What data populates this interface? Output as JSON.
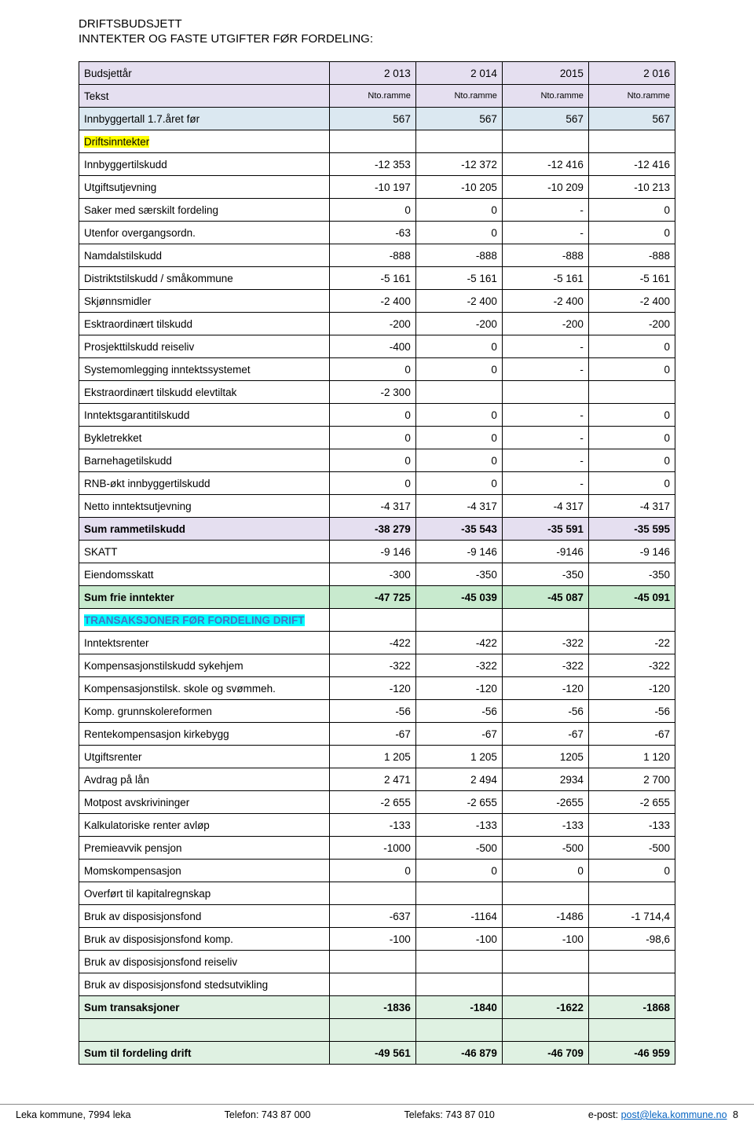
{
  "header": {
    "line1": "DRIFTSBUDSJETT",
    "line2": "INNTEKTER OG FASTE UTGIFTER FØR FORDELING:"
  },
  "head_row1": {
    "label": "Budsjettår",
    "c1": "2 013",
    "c2": "2 014",
    "c3": "2015",
    "c4": "2 016"
  },
  "head_row2": {
    "label": "Tekst",
    "c1": "Nto.ramme",
    "c2": "Nto.ramme",
    "c3": "Nto.ramme",
    "c4": "Nto.ramme"
  },
  "rows": [
    {
      "label": "Innbyggertall 1.7.året før",
      "c1": "567",
      "c2": "567",
      "c3": "567",
      "c4": "567",
      "style": "blue"
    },
    {
      "label": "Driftsinntekter",
      "c1": "",
      "c2": "",
      "c3": "",
      "c4": "",
      "highlight": "yellow"
    },
    {
      "label": "Innbyggertilskudd",
      "c1": "-12 353",
      "c2": "-12 372",
      "c3": "-12 416",
      "c4": "-12 416"
    },
    {
      "label": "Utgiftsutjevning",
      "c1": "-10 197",
      "c2": "-10 205",
      "c3": "-10 209",
      "c4": "-10 213"
    },
    {
      "label": "Saker med særskilt fordeling",
      "c1": "0",
      "c2": "0",
      "c3": "-",
      "c4": "0"
    },
    {
      "label": "Utenfor overgangsordn.",
      "c1": "-63",
      "c2": "0",
      "c3": "-",
      "c4": "0"
    },
    {
      "label": "Namdalstilskudd",
      "c1": "-888",
      "c2": "-888",
      "c3": "-888",
      "c4": "-888"
    },
    {
      "label": "Distriktstilskudd / småkommune",
      "c1": "-5 161",
      "c2": "-5 161",
      "c3": "-5 161",
      "c4": "-5 161"
    },
    {
      "label": "Skjønnsmidler",
      "c1": "-2 400",
      "c2": "-2 400",
      "c3": "-2 400",
      "c4": "-2 400"
    },
    {
      "label": "Esktraordinært tilskudd",
      "c1": "-200",
      "c2": "-200",
      "c3": "-200",
      "c4": "-200"
    },
    {
      "label": "Prosjekttilskudd reiseliv",
      "c1": "-400",
      "c2": "0",
      "c3": "-",
      "c4": "0"
    },
    {
      "label": "Systemomlegging inntektssystemet",
      "c1": "0",
      "c2": "0",
      "c3": "-",
      "c4": "0"
    },
    {
      "label": "Ekstraordinært tilskudd elevtiltak",
      "c1": "-2 300",
      "c2": "",
      "c3": "",
      "c4": ""
    },
    {
      "label": "Inntektsgarantitilskudd",
      "c1": "0",
      "c2": "0",
      "c3": "-",
      "c4": "0"
    },
    {
      "label": "Bykletrekket",
      "c1": "0",
      "c2": "0",
      "c3": "-",
      "c4": "0"
    },
    {
      "label": "Barnehagetilskudd",
      "c1": "0",
      "c2": "0",
      "c3": "-",
      "c4": "0"
    },
    {
      "label": "RNB-økt innbyggertilskudd",
      "c1": "0",
      "c2": "0",
      "c3": "-",
      "c4": "0"
    },
    {
      "label": "Netto inntektsutjevning",
      "c1": "-4 317",
      "c2": "-4 317",
      "c3": "-4 317",
      "c4": "-4 317"
    },
    {
      "label": "Sum rammetilskudd",
      "c1": "-38 279",
      "c2": "-35 543",
      "c3": "-35 591",
      "c4": "-35 595",
      "style": "lilac",
      "bold": true
    },
    {
      "label": "SKATT",
      "c1": "-9 146",
      "c2": "-9 146",
      "c3": "-9146",
      "c4": "-9 146"
    },
    {
      "label": "Eiendomsskatt",
      "c1": "-300",
      "c2": "-350",
      "c3": "-350",
      "c4": "-350"
    },
    {
      "label": "Sum frie inntekter",
      "c1": "-47 725",
      "c2": "-45 039",
      "c3": "-45 087",
      "c4": "-45 091",
      "style": "green",
      "bold": true
    },
    {
      "label": "TRANSAKSJONER FØR FORDELING DRIFT",
      "c1": "",
      "c2": "",
      "c3": "",
      "c4": "",
      "highlight": "cyan",
      "bold": true,
      "colorblue": true
    },
    {
      "label": "Inntektsrenter",
      "c1": "-422",
      "c2": "-422",
      "c3": "-322",
      "c4": "-22"
    },
    {
      "label": "Kompensasjonstilskudd sykehjem",
      "c1": "-322",
      "c2": "-322",
      "c3": "-322",
      "c4": "-322"
    },
    {
      "label": "Kompensasjonstilsk. skole og svømmeh.",
      "c1": "-120",
      "c2": "-120",
      "c3": "-120",
      "c4": "-120"
    },
    {
      "label": "Komp. grunnskolereformen",
      "c1": "-56",
      "c2": "-56",
      "c3": "-56",
      "c4": "-56"
    },
    {
      "label": "Rentekompensasjon  kirkebygg",
      "c1": "-67",
      "c2": "-67",
      "c3": "-67",
      "c4": "-67"
    },
    {
      "label": "Utgiftsrenter",
      "c1": "1 205",
      "c2": "1 205",
      "c3": "1205",
      "c4": "1 120"
    },
    {
      "label": "Avdrag på lån",
      "c1": "2 471",
      "c2": "2 494",
      "c3": "2934",
      "c4": "2 700"
    },
    {
      "label": "Motpost avskrivininger",
      "c1": "-2 655",
      "c2": "-2 655",
      "c3": "-2655",
      "c4": "-2 655"
    },
    {
      "label": "Kalkulatoriske renter avløp",
      "c1": "-133",
      "c2": "-133",
      "c3": "-133",
      "c4": "-133"
    },
    {
      "label": "Premieavvik pensjon",
      "c1": "-1000",
      "c2": "-500",
      "c3": "-500",
      "c4": "-500"
    },
    {
      "label": "Momskompensasjon",
      "c1": "0",
      "c2": "0",
      "c3": "0",
      "c4": "0"
    },
    {
      "label": "Overført til kapitalregnskap",
      "c1": "",
      "c2": "",
      "c3": "",
      "c4": ""
    },
    {
      "label": "Bruk av disposisjonsfond",
      "c1": "-637",
      "c2": "-1164",
      "c3": "-1486",
      "c4": "-1 714,4"
    },
    {
      "label": "Bruk av disposisjonsfond komp.",
      "c1": "-100",
      "c2": "-100",
      "c3": "-100",
      "c4": "-98,6"
    },
    {
      "label": "Bruk av disposisjonsfond reiseliv",
      "c1": "",
      "c2": "",
      "c3": "",
      "c4": ""
    },
    {
      "label": "Bruk av disposisjonsfond stedsutvikling",
      "c1": "",
      "c2": "",
      "c3": "",
      "c4": ""
    },
    {
      "label": "Sum transaksjoner",
      "c1": "-1836",
      "c2": "-1840",
      "c3": "-1622",
      "c4": "-1868",
      "style": "green-light",
      "bold": true
    },
    {
      "label": "",
      "c1": "",
      "c2": "",
      "c3": "",
      "c4": "",
      "style": "green-light"
    },
    {
      "label": "Sum til fordeling drift",
      "c1": "-49 561",
      "c2": "-46 879",
      "c3": "-46 709",
      "c4": "-46 959",
      "style": "green-light",
      "bold": true
    }
  ],
  "footer": {
    "left": "Leka kommune, 7994 leka",
    "mid1": "Telefon: 743 87 000",
    "mid2": "Telefaks: 743 87 010",
    "right_pre": "e-post: ",
    "link": "post@leka.kommune.no",
    "page": "8"
  }
}
